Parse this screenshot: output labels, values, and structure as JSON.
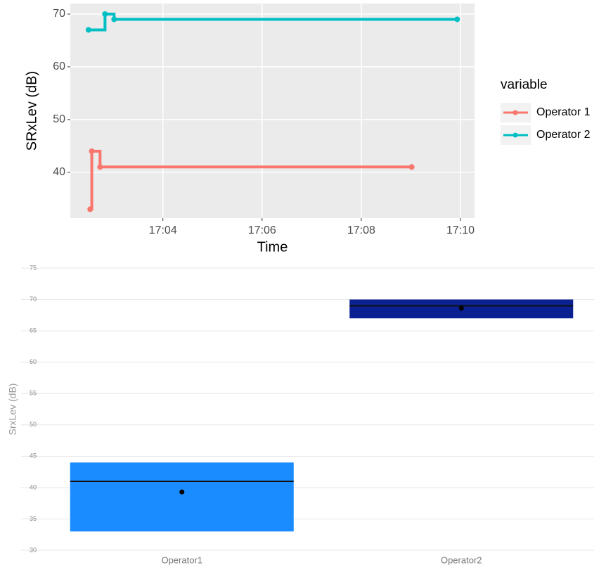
{
  "chart_data": [
    {
      "type": "step-line",
      "xlabel": "Time",
      "ylabel": "SRxLev (dB)",
      "legend_title": "variable",
      "series": [
        {
          "name": "Operator 1",
          "color": "#F8766D",
          "x": [
            "17:02:32",
            "17:02:34",
            "17:02:44",
            "17:09:01"
          ],
          "values": [
            33,
            44,
            41,
            41
          ]
        },
        {
          "name": "Operator 2",
          "color": "#00BFC4",
          "x": [
            "17:02:30",
            "17:02:50",
            "17:03:01",
            "17:09:56"
          ],
          "values": [
            67,
            70,
            69,
            69
          ]
        }
      ],
      "xlim": [
        "17:02:08",
        "17:10:17"
      ],
      "xticks": [
        "17:04",
        "17:06",
        "17:08",
        "17:10"
      ],
      "ylim": [
        31.3,
        72
      ],
      "yticks": [
        40,
        50,
        60,
        70
      ],
      "grid": true
    },
    {
      "type": "box",
      "ylabel": "SrxLev (dB)",
      "categories": [
        "Operator1",
        "Operator2"
      ],
      "colors": [
        "#1a8cff",
        "#0b2191"
      ],
      "low": [
        33,
        67
      ],
      "high": [
        44,
        70
      ],
      "median": [
        41,
        69
      ],
      "mean": [
        39.3,
        68.6
      ],
      "ylim": [
        30,
        75
      ],
      "yticks": [
        30,
        35,
        40,
        45,
        50,
        55,
        60,
        65,
        70,
        75
      ],
      "grid": true
    }
  ]
}
